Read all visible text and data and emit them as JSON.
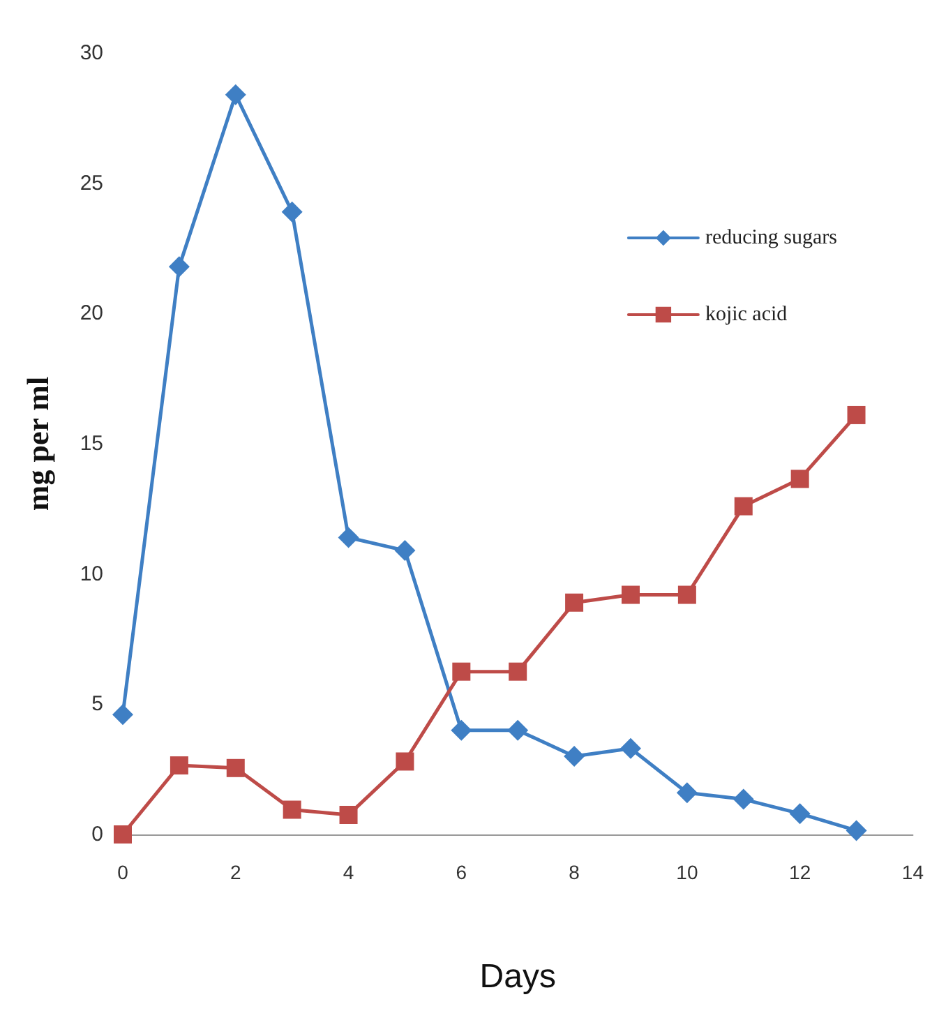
{
  "chart_data": {
    "type": "line",
    "xlabel": "Days",
    "ylabel": "mg per ml",
    "x": [
      0,
      1,
      2,
      3,
      4,
      5,
      6,
      7,
      8,
      9,
      10,
      11,
      12,
      13
    ],
    "series": [
      {
        "name": "reducing sugars",
        "color": "#3f7fc4",
        "marker": "diamond",
        "values": [
          4.6,
          21.8,
          28.4,
          23.9,
          11.4,
          10.9,
          4.0,
          4.0,
          3.0,
          3.3,
          1.6,
          1.35,
          0.8,
          0.15
        ]
      },
      {
        "name": "kojic acid",
        "color": "#be4b48",
        "marker": "square",
        "values": [
          0,
          2.65,
          2.55,
          0.95,
          0.75,
          2.8,
          6.25,
          6.25,
          8.9,
          9.2,
          9.2,
          12.6,
          13.65,
          16.1
        ]
      }
    ],
    "xlim": [
      0,
      14
    ],
    "xticks": [
      0,
      2,
      4,
      6,
      8,
      10,
      12,
      14
    ],
    "ylim": [
      0,
      30
    ],
    "yticks": [
      0,
      5,
      10,
      15,
      20,
      25,
      30
    ],
    "grid": false,
    "legend": "top right",
    "line_style": "solid"
  }
}
